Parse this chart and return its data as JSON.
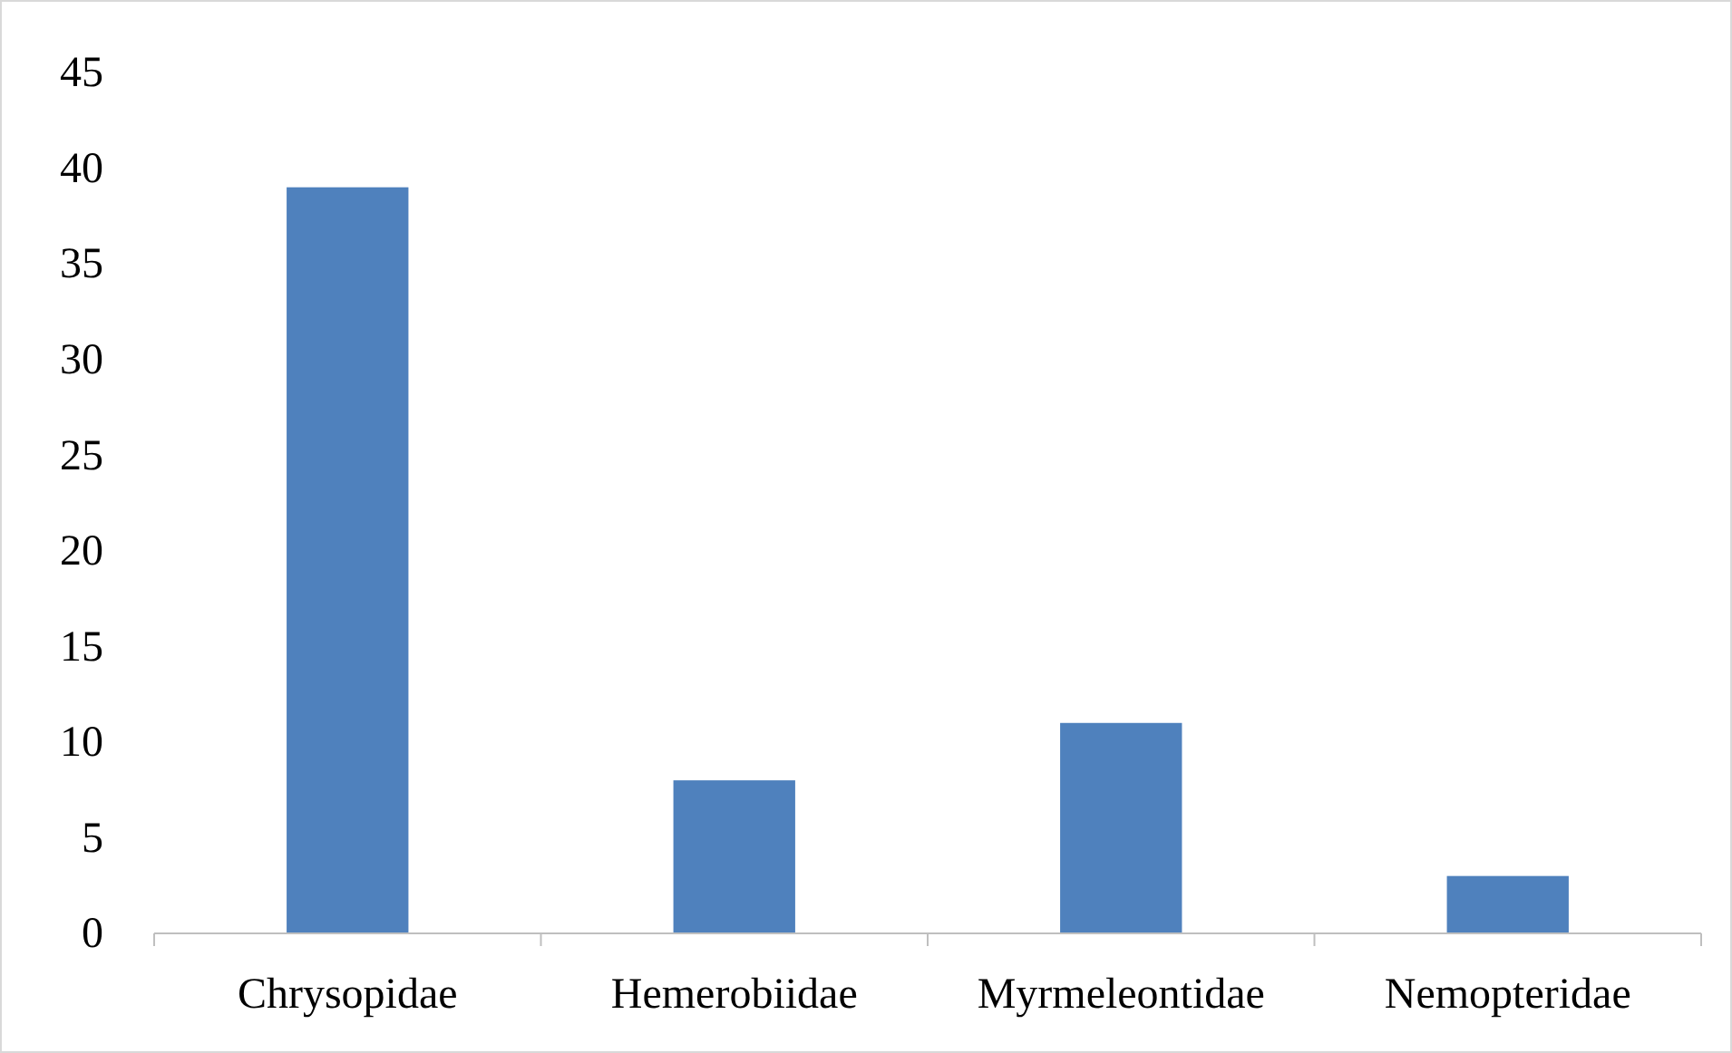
{
  "chart_data": {
    "type": "bar",
    "categories": [
      "Chrysopidae",
      "Hemerobiidae",
      "Myrmeleontidae",
      "Nemopteridae"
    ],
    "values": [
      39,
      8,
      11,
      3
    ],
    "color": "#4f81bd",
    "ylim": [
      0,
      45
    ],
    "yticks": [
      0,
      5,
      10,
      15,
      20,
      25,
      30,
      35,
      40,
      45
    ],
    "grid": false
  }
}
